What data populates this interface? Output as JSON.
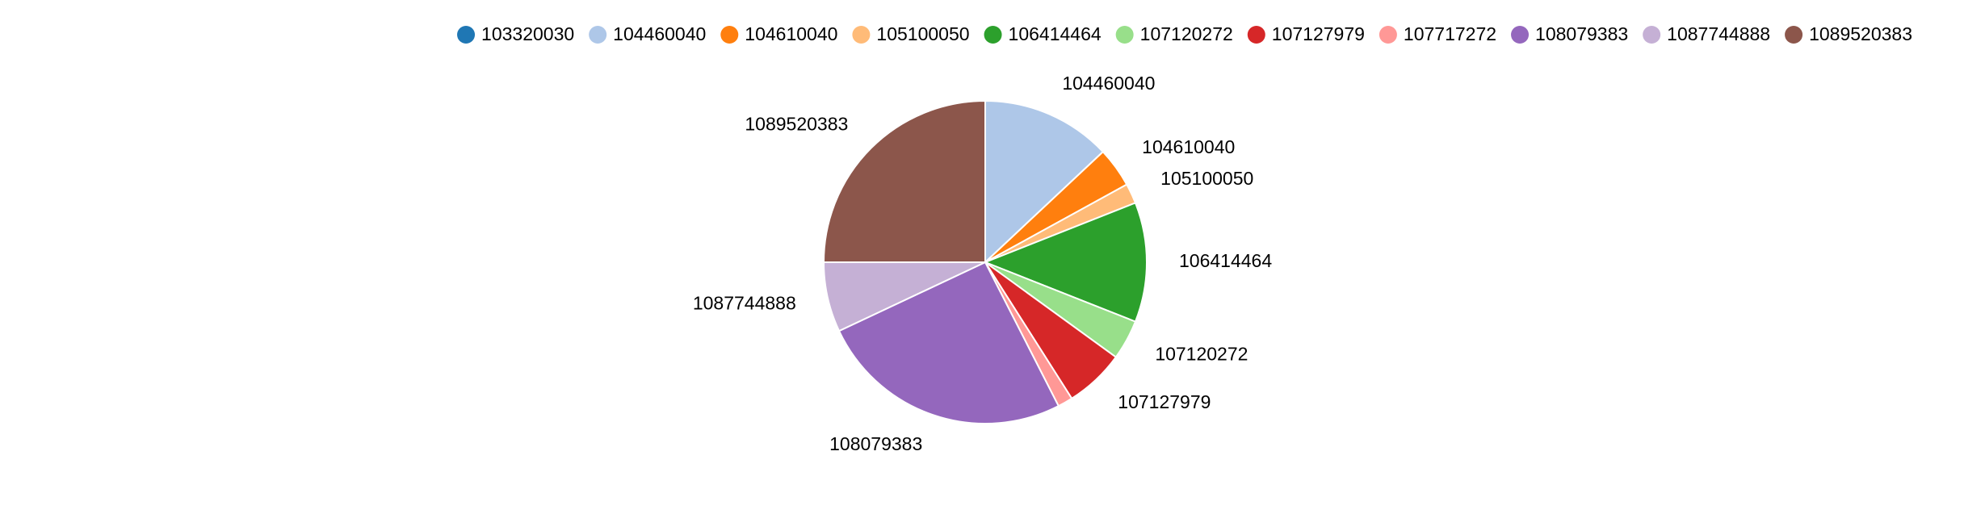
{
  "chart_data": {
    "type": "pie",
    "title": "",
    "legend_position": "top-right",
    "slice_order": "clockwise-from-top",
    "series": [
      {
        "name": "103320030",
        "value": 0.0,
        "color": "#1f77b4",
        "label_visible": false
      },
      {
        "name": "104460040",
        "value": 13.0,
        "color": "#aec7e8",
        "label_visible": true
      },
      {
        "name": "104610040",
        "value": 4.0,
        "color": "#ff7f0e",
        "label_visible": true
      },
      {
        "name": "105100050",
        "value": 2.0,
        "color": "#ffbb78",
        "label_visible": true
      },
      {
        "name": "106414464",
        "value": 12.0,
        "color": "#2ca02c",
        "label_visible": true
      },
      {
        "name": "107120272",
        "value": 4.0,
        "color": "#98df8a",
        "label_visible": true
      },
      {
        "name": "107127979",
        "value": 6.0,
        "color": "#d62728",
        "label_visible": true
      },
      {
        "name": "107717272",
        "value": 1.5,
        "color": "#ff9896",
        "label_visible": false
      },
      {
        "name": "108079383",
        "value": 25.5,
        "color": "#9467bd",
        "label_visible": true
      },
      {
        "name": "1087744888",
        "value": 7.0,
        "color": "#c5b0d5",
        "label_visible": true
      },
      {
        "name": "1089520383",
        "value": 25.0,
        "color": "#8c564b",
        "label_visible": true
      }
    ]
  }
}
